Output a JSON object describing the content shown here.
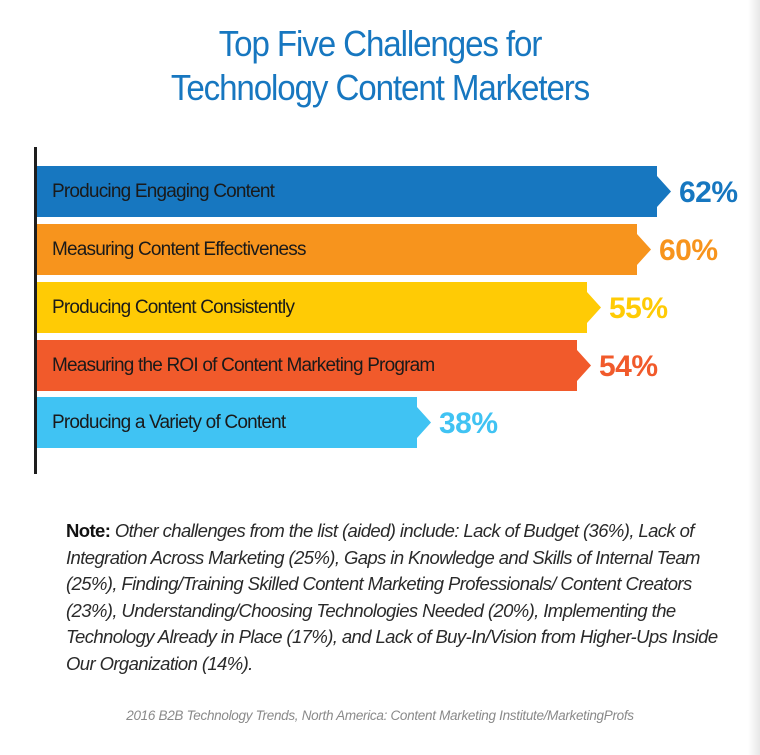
{
  "title": {
    "line1": "Top Five Challenges for",
    "line2": "Technology Content Marketers"
  },
  "bars": [
    {
      "label": "Producing Engaging Content",
      "value": "62%",
      "color": "#1777c0"
    },
    {
      "label": "Measuring Content Effectiveness",
      "value": "60%",
      "color": "#f7941d"
    },
    {
      "label": "Producing Content Consistently",
      "value": "55%",
      "color": "#ffcb05"
    },
    {
      "label": "Measuring the ROI of Content Marketing Program",
      "value": "54%",
      "color": "#f15a2b"
    },
    {
      "label": "Producing a Variety of Content",
      "value": "38%",
      "color": "#40c3f3"
    }
  ],
  "note": {
    "prefix": "Note:",
    "text": "Other challenges from the list (aided) include: Lack of Budget (36%), Lack of Integration Across Marketing (25%), Gaps in Knowledge and Skills of Internal Team (25%), Finding/Training Skilled Content Marketing Professionals/ Content Creators (23%), Understanding/Choosing Technologies Needed (20%), Implementing the Technology Already in Place (17%), and Lack of Buy-In/Vision from Higher-Ups Inside Our Organization (14%)."
  },
  "source": "2016 B2B Technology Trends, North America: Content Marketing Institute/MarketingProfs",
  "chart_data": {
    "type": "bar",
    "orientation": "horizontal",
    "title": "Top Five Challenges for Technology Content Marketers",
    "categories": [
      "Producing Engaging Content",
      "Measuring Content Effectiveness",
      "Producing Content Consistently",
      "Measuring the ROI of Content Marketing Program",
      "Producing a Variety of Content"
    ],
    "values": [
      62,
      60,
      55,
      54,
      38
    ],
    "value_labels": [
      "62%",
      "60%",
      "55%",
      "54%",
      "38%"
    ],
    "colors": [
      "#1777c0",
      "#f7941d",
      "#ffcb05",
      "#f15a2b",
      "#40c3f3"
    ],
    "xlabel": "",
    "ylabel": "",
    "unit": "%",
    "grid": false,
    "legend": "none",
    "other_challenges": [
      {
        "label": "Lack of Budget",
        "value": 36
      },
      {
        "label": "Lack of Integration Across Marketing",
        "value": 25
      },
      {
        "label": "Gaps in Knowledge and Skills of Internal Team",
        "value": 25
      },
      {
        "label": "Finding/Training Skilled Content Marketing Professionals/ Content Creators",
        "value": 23
      },
      {
        "label": "Understanding/Choosing Technologies Needed",
        "value": 20
      },
      {
        "label": "Implementing the Technology Already in Place",
        "value": 17
      },
      {
        "label": "Lack of Buy-In/Vision from Higher-Ups Inside Our Organization",
        "value": 14
      }
    ]
  }
}
